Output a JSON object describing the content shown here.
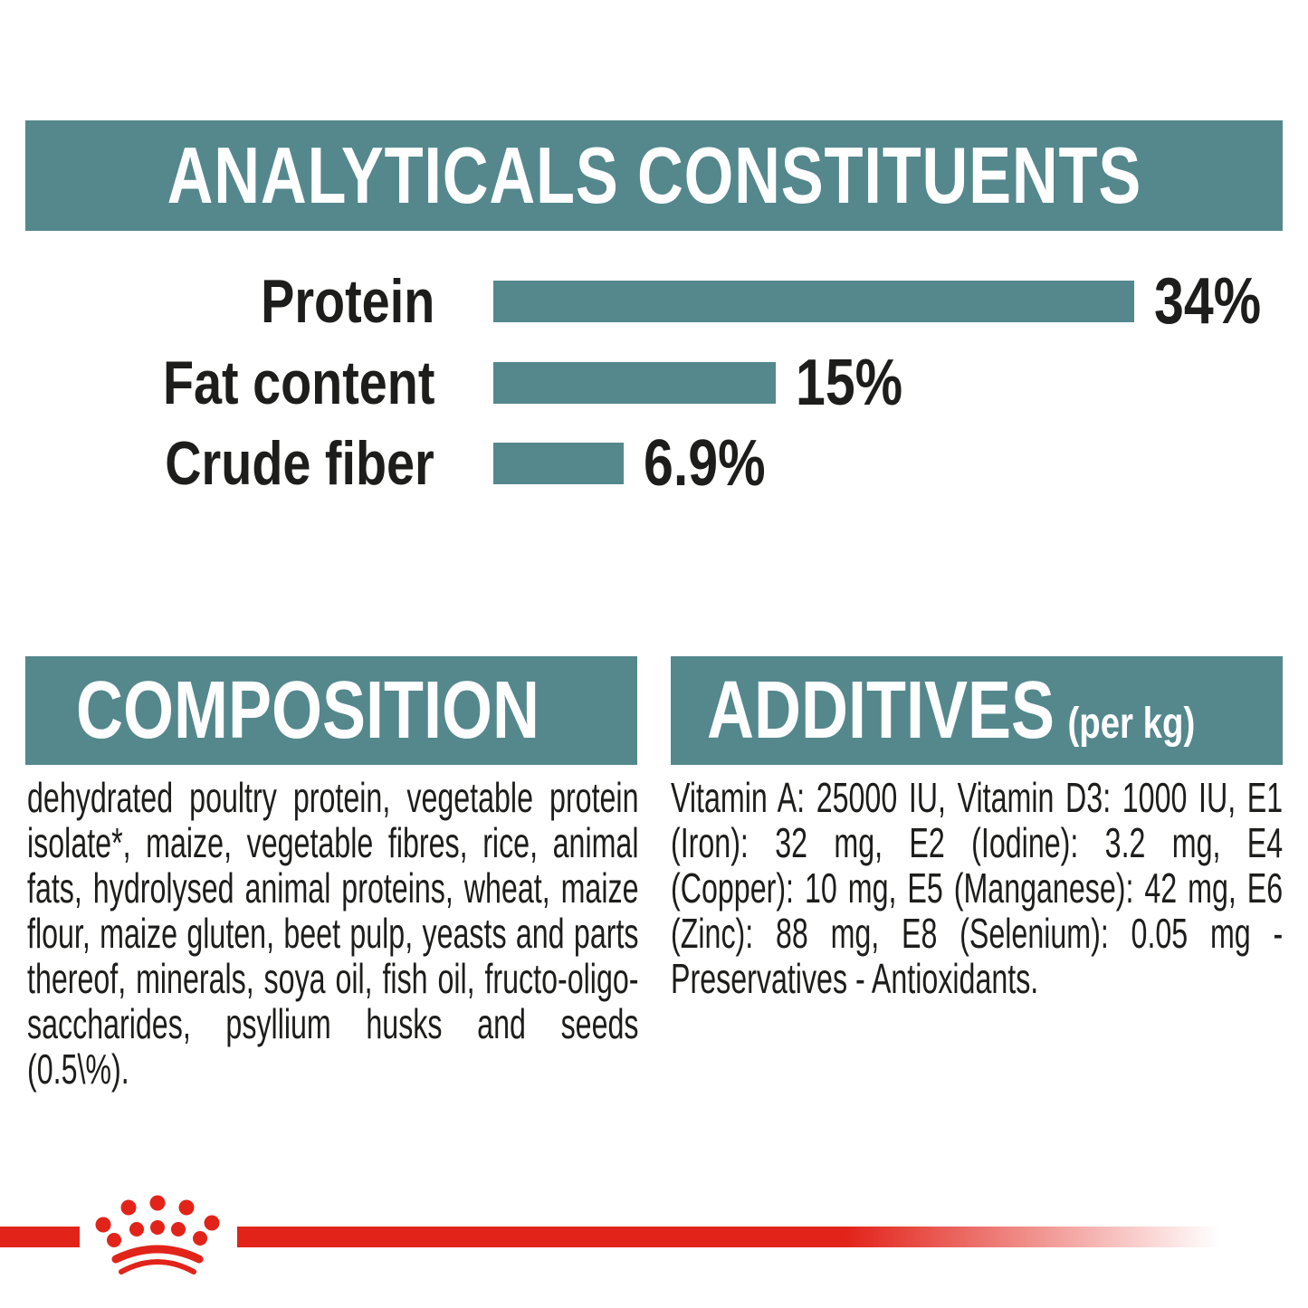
{
  "header": {
    "title": "ANALYTICALS CONSTITUENTS"
  },
  "chart_data": {
    "type": "bar",
    "orientation": "horizontal",
    "title": "ANALYTICALS CONSTITUENTS",
    "categories": [
      "Protein",
      "Fat content",
      "Crude fiber"
    ],
    "values": [
      34,
      15,
      6.9
    ],
    "value_labels": [
      "34%",
      "15%",
      "6.9%"
    ],
    "xlim": [
      0,
      34
    ],
    "grid": false,
    "legend": "none",
    "bar_color": "#54888D",
    "label_color": "#1D1D1B"
  },
  "sections": {
    "composition": {
      "title": "COMPOSITION",
      "body": "dehydrated poultry protein, vegetable protein isolate*, maize, vegetable fibres, rice, animal fats, hydrolysed animal proteins, wheat, maize flour, maize gluten, beet pulp, yeasts and parts thereof, minerals, soya oil, fish oil, fructo-oligo-saccharides, psyllium husks and seeds (0.5\\%)."
    },
    "additives": {
      "title": "ADDITIVES",
      "unit": "(per kg)",
      "body": "Vitamin A: 25000 IU, Vitamin D3: 1000 IU, E1 (Iron): 32 mg, E2 (Iodine): 3.2 mg, E4 (Copper): 10 mg, E5 (Manganese): 42 mg, E6 (Zinc): 88 mg, E8 (Selenium): 0.05 mg - Preservatives - Antioxidants."
    }
  },
  "footer": {
    "logo": "royal-canin-crown"
  },
  "colors": {
    "teal": "#54888D",
    "red": "#E2231A",
    "text": "#1D1D1B",
    "background": "#FFFFFF"
  }
}
